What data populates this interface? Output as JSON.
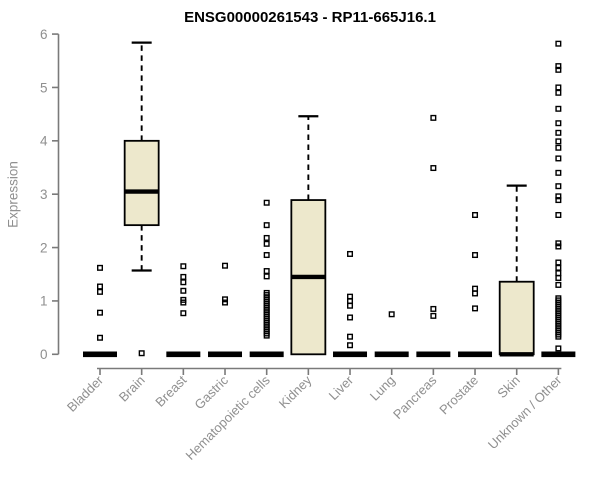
{
  "chart_data": {
    "type": "boxplot",
    "title": "ENSG00000261543 - RP11-665J16.1",
    "ylabel": "Expression",
    "xlabel": "",
    "ylim": [
      0,
      6
    ],
    "y_ticks": [
      0,
      1,
      2,
      3,
      4,
      5,
      6
    ],
    "grid": false,
    "legend": false,
    "colors": {
      "box_fill": "#EDE8CC",
      "box_stroke": "#000000",
      "median": "#000000",
      "whisker": "#000000",
      "outlier": "#000000",
      "axis_line": "#7a7a7a",
      "tick_label": "#8f8f8f",
      "title": "#000000",
      "background": "#ffffff"
    },
    "categories": [
      "Bladder",
      "Brain",
      "Breast",
      "Gastric",
      "Hematopoietic cells",
      "Kidney",
      "Liver",
      "Lung",
      "Pancreas",
      "Prostate",
      "Skin",
      "Unknown / Other"
    ],
    "boxes": [
      {
        "category": "Bladder",
        "q1": 0,
        "median": 0,
        "q3": 0,
        "whisker_low": 0,
        "whisker_high": 0,
        "outliers": [
          1.62,
          1.27,
          1.17,
          0.78,
          0.31
        ]
      },
      {
        "category": "Brain",
        "q1": 2.42,
        "median": 3.05,
        "q3": 4.0,
        "whisker_low": 1.57,
        "whisker_high": 5.84,
        "outliers": [
          0.02
        ]
      },
      {
        "category": "Breast",
        "q1": 0,
        "median": 0,
        "q3": 0,
        "whisker_low": 0,
        "whisker_high": 0,
        "outliers": [
          1.65,
          1.45,
          1.35,
          1.19,
          1.02,
          0.97,
          0.77
        ]
      },
      {
        "category": "Gastric",
        "q1": 0,
        "median": 0,
        "q3": 0,
        "whisker_low": 0,
        "whisker_high": 0,
        "outliers": [
          1.66,
          1.03,
          0.97
        ]
      },
      {
        "category": "Hematopoietic cells",
        "q1": 0,
        "median": 0,
        "q3": 0,
        "whisker_low": 0,
        "whisker_high": 0,
        "outliers": [
          2.84,
          2.42,
          2.18,
          2.07,
          1.86,
          1.56,
          1.46,
          1.15,
          1.11,
          1.07,
          1.03,
          0.99,
          0.95,
          0.91,
          0.87,
          0.83,
          0.79,
          0.75,
          0.71,
          0.67,
          0.63,
          0.59,
          0.55,
          0.51,
          0.47,
          0.43,
          0.39,
          0.35
        ]
      },
      {
        "category": "Kidney",
        "q1": 0,
        "median": 1.45,
        "q3": 2.89,
        "whisker_low": 0,
        "whisker_high": 4.46,
        "outliers": []
      },
      {
        "category": "Liver",
        "q1": 0,
        "median": 0,
        "q3": 0,
        "whisker_low": 0,
        "whisker_high": 0,
        "outliers": [
          1.88,
          1.08,
          1.0,
          0.91,
          0.69,
          0.33,
          0.17
        ]
      },
      {
        "category": "Lung",
        "q1": 0,
        "median": 0,
        "q3": 0,
        "whisker_low": 0,
        "whisker_high": 0,
        "outliers": [
          0.75
        ]
      },
      {
        "category": "Pancreas",
        "q1": 0,
        "median": 0,
        "q3": 0,
        "whisker_low": 0,
        "whisker_high": 0,
        "outliers": [
          4.43,
          3.49,
          0.85,
          0.72
        ]
      },
      {
        "category": "Prostate",
        "q1": 0,
        "median": 0,
        "q3": 0,
        "whisker_low": 0,
        "whisker_high": 0,
        "outliers": [
          2.61,
          1.86,
          1.23,
          1.14,
          0.86
        ]
      },
      {
        "category": "Skin",
        "q1": 0,
        "median": 0,
        "q3": 1.36,
        "whisker_low": 0,
        "whisker_high": 3.16,
        "outliers": []
      },
      {
        "category": "Unknown / Other",
        "q1": 0,
        "median": 0,
        "q3": 0,
        "whisker_low": 0,
        "whisker_high": 0,
        "outliers": [
          5.82,
          5.4,
          5.33,
          5.0,
          4.9,
          4.6,
          4.33,
          4.15,
          3.99,
          3.87,
          3.67,
          3.4,
          3.15,
          2.96,
          2.89,
          2.61,
          2.08,
          2.02,
          1.72,
          1.62,
          1.52,
          1.43,
          1.3,
          1.05,
          1.01,
          0.97,
          0.93,
          0.89,
          0.85,
          0.81,
          0.77,
          0.73,
          0.69,
          0.65,
          0.61,
          0.57,
          0.53,
          0.49,
          0.45,
          0.41,
          0.37,
          0.33,
          0.11
        ]
      }
    ]
  }
}
